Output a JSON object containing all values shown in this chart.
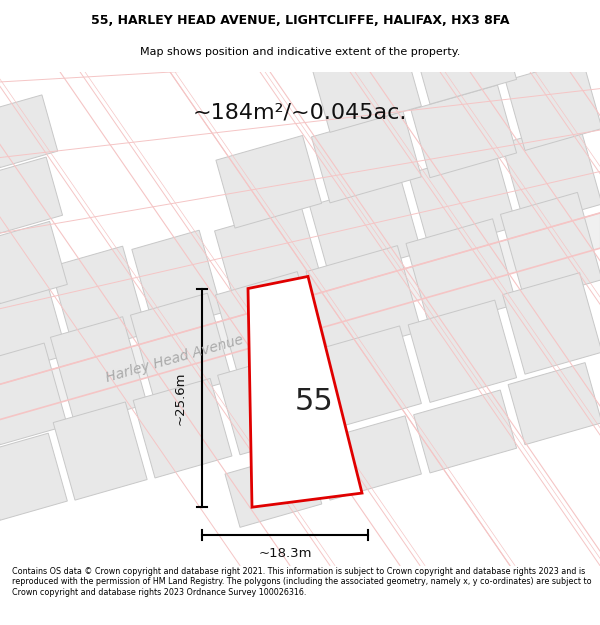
{
  "title_line1": "55, HARLEY HEAD AVENUE, LIGHTCLIFFE, HALIFAX, HX3 8FA",
  "title_line2": "Map shows position and indicative extent of the property.",
  "area_text": "~184m²/~0.045ac.",
  "number_label": "55",
  "dim_width": "~18.3m",
  "dim_height": "~25.6m",
  "street_label": "Harley Head Avenue",
  "footer_text": "Contains OS data © Crown copyright and database right 2021. This information is subject to Crown copyright and database rights 2023 and is reproduced with the permission of HM Land Registry. The polygons (including the associated geometry, namely x, y co-ordinates) are subject to Crown copyright and database rights 2023 Ordnance Survey 100026316.",
  "bg_color": "#ffffff",
  "map_bg": "#ffffff",
  "plot_fill": "#ffffff",
  "plot_edge": "#e00000",
  "pink": "#f5c5c5",
  "lgray": "#e8e8e8",
  "dgray": "#d0d0d0",
  "road_stripe": "#e0e0e0"
}
